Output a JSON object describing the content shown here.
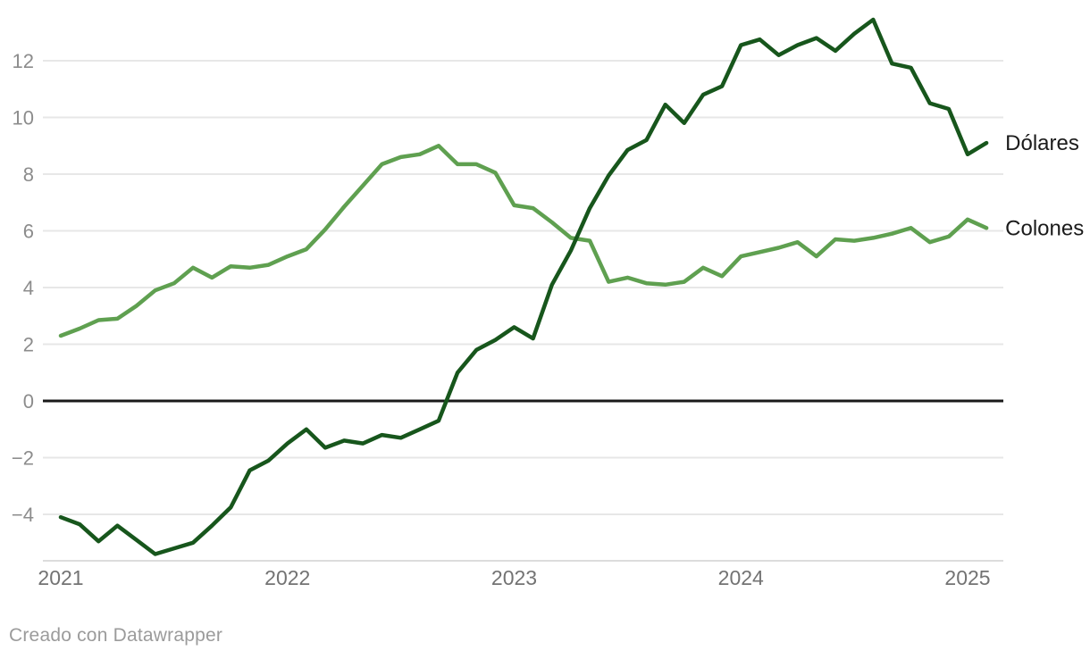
{
  "chart_data": {
    "type": "line",
    "title": "",
    "xlabel": "",
    "ylabel": "",
    "x_unit": "month",
    "x_start": "2021-01",
    "x_end": "2025-02",
    "grid": "horizontal",
    "zero_line": true,
    "legend_position": "right-end-labels",
    "ylim": [
      -5.9,
      13.7
    ],
    "y_ticks": [
      {
        "value": 12,
        "label": "12"
      },
      {
        "value": 10,
        "label": "10"
      },
      {
        "value": 8,
        "label": "8"
      },
      {
        "value": 6,
        "label": "6"
      },
      {
        "value": 4,
        "label": "4"
      },
      {
        "value": 2,
        "label": "2"
      },
      {
        "value": 0,
        "label": "0"
      },
      {
        "value": -2,
        "label": "−2"
      },
      {
        "value": -4,
        "label": "−4"
      }
    ],
    "x_ticks": [
      {
        "month_index": 0,
        "label": "2021"
      },
      {
        "month_index": 12,
        "label": "2022"
      },
      {
        "month_index": 24,
        "label": "2023"
      },
      {
        "month_index": 36,
        "label": "2024"
      },
      {
        "month_index": 48,
        "label": "2025"
      }
    ],
    "series": [
      {
        "name": "Dólares",
        "color": "#17561c",
        "values": [
          -4.1,
          -4.35,
          -4.95,
          -4.4,
          -4.9,
          -5.4,
          -5.2,
          -5.0,
          -4.4,
          -3.75,
          -2.45,
          -2.1,
          -1.5,
          -1.0,
          -1.65,
          -1.4,
          -1.5,
          -1.2,
          -1.3,
          -1.0,
          -0.7,
          1.0,
          1.8,
          2.15,
          2.6,
          2.2,
          4.1,
          5.3,
          6.8,
          7.95,
          8.85,
          9.2,
          10.45,
          9.8,
          10.8,
          11.1,
          12.55,
          12.75,
          12.2,
          12.55,
          12.8,
          12.35,
          12.95,
          13.45,
          11.9,
          11.75,
          10.5,
          10.3,
          8.7,
          9.1
        ]
      },
      {
        "name": "Colones",
        "color": "#5fa050",
        "values": [
          2.3,
          2.55,
          2.85,
          2.9,
          3.35,
          3.9,
          4.15,
          4.7,
          4.35,
          4.75,
          4.7,
          4.8,
          5.1,
          5.35,
          6.05,
          6.85,
          7.6,
          8.35,
          8.6,
          8.7,
          9.0,
          8.35,
          8.35,
          8.05,
          6.9,
          6.8,
          6.3,
          5.75,
          5.65,
          4.2,
          4.35,
          4.15,
          4.1,
          4.2,
          4.7,
          4.4,
          5.1,
          5.25,
          5.4,
          5.6,
          5.1,
          5.7,
          5.65,
          5.75,
          5.9,
          6.1,
          5.6,
          5.8,
          6.4,
          6.1
        ]
      }
    ],
    "colors": {
      "grid": "#e7e7e7",
      "zero_line": "#1a1a1a",
      "axis_line": "#dcdcdc",
      "y_tick_text": "#8c8c8c",
      "x_tick_text": "#737373",
      "label_text": "#1b1b1b"
    }
  },
  "footer": {
    "credit": "Creado con Datawrapper"
  }
}
